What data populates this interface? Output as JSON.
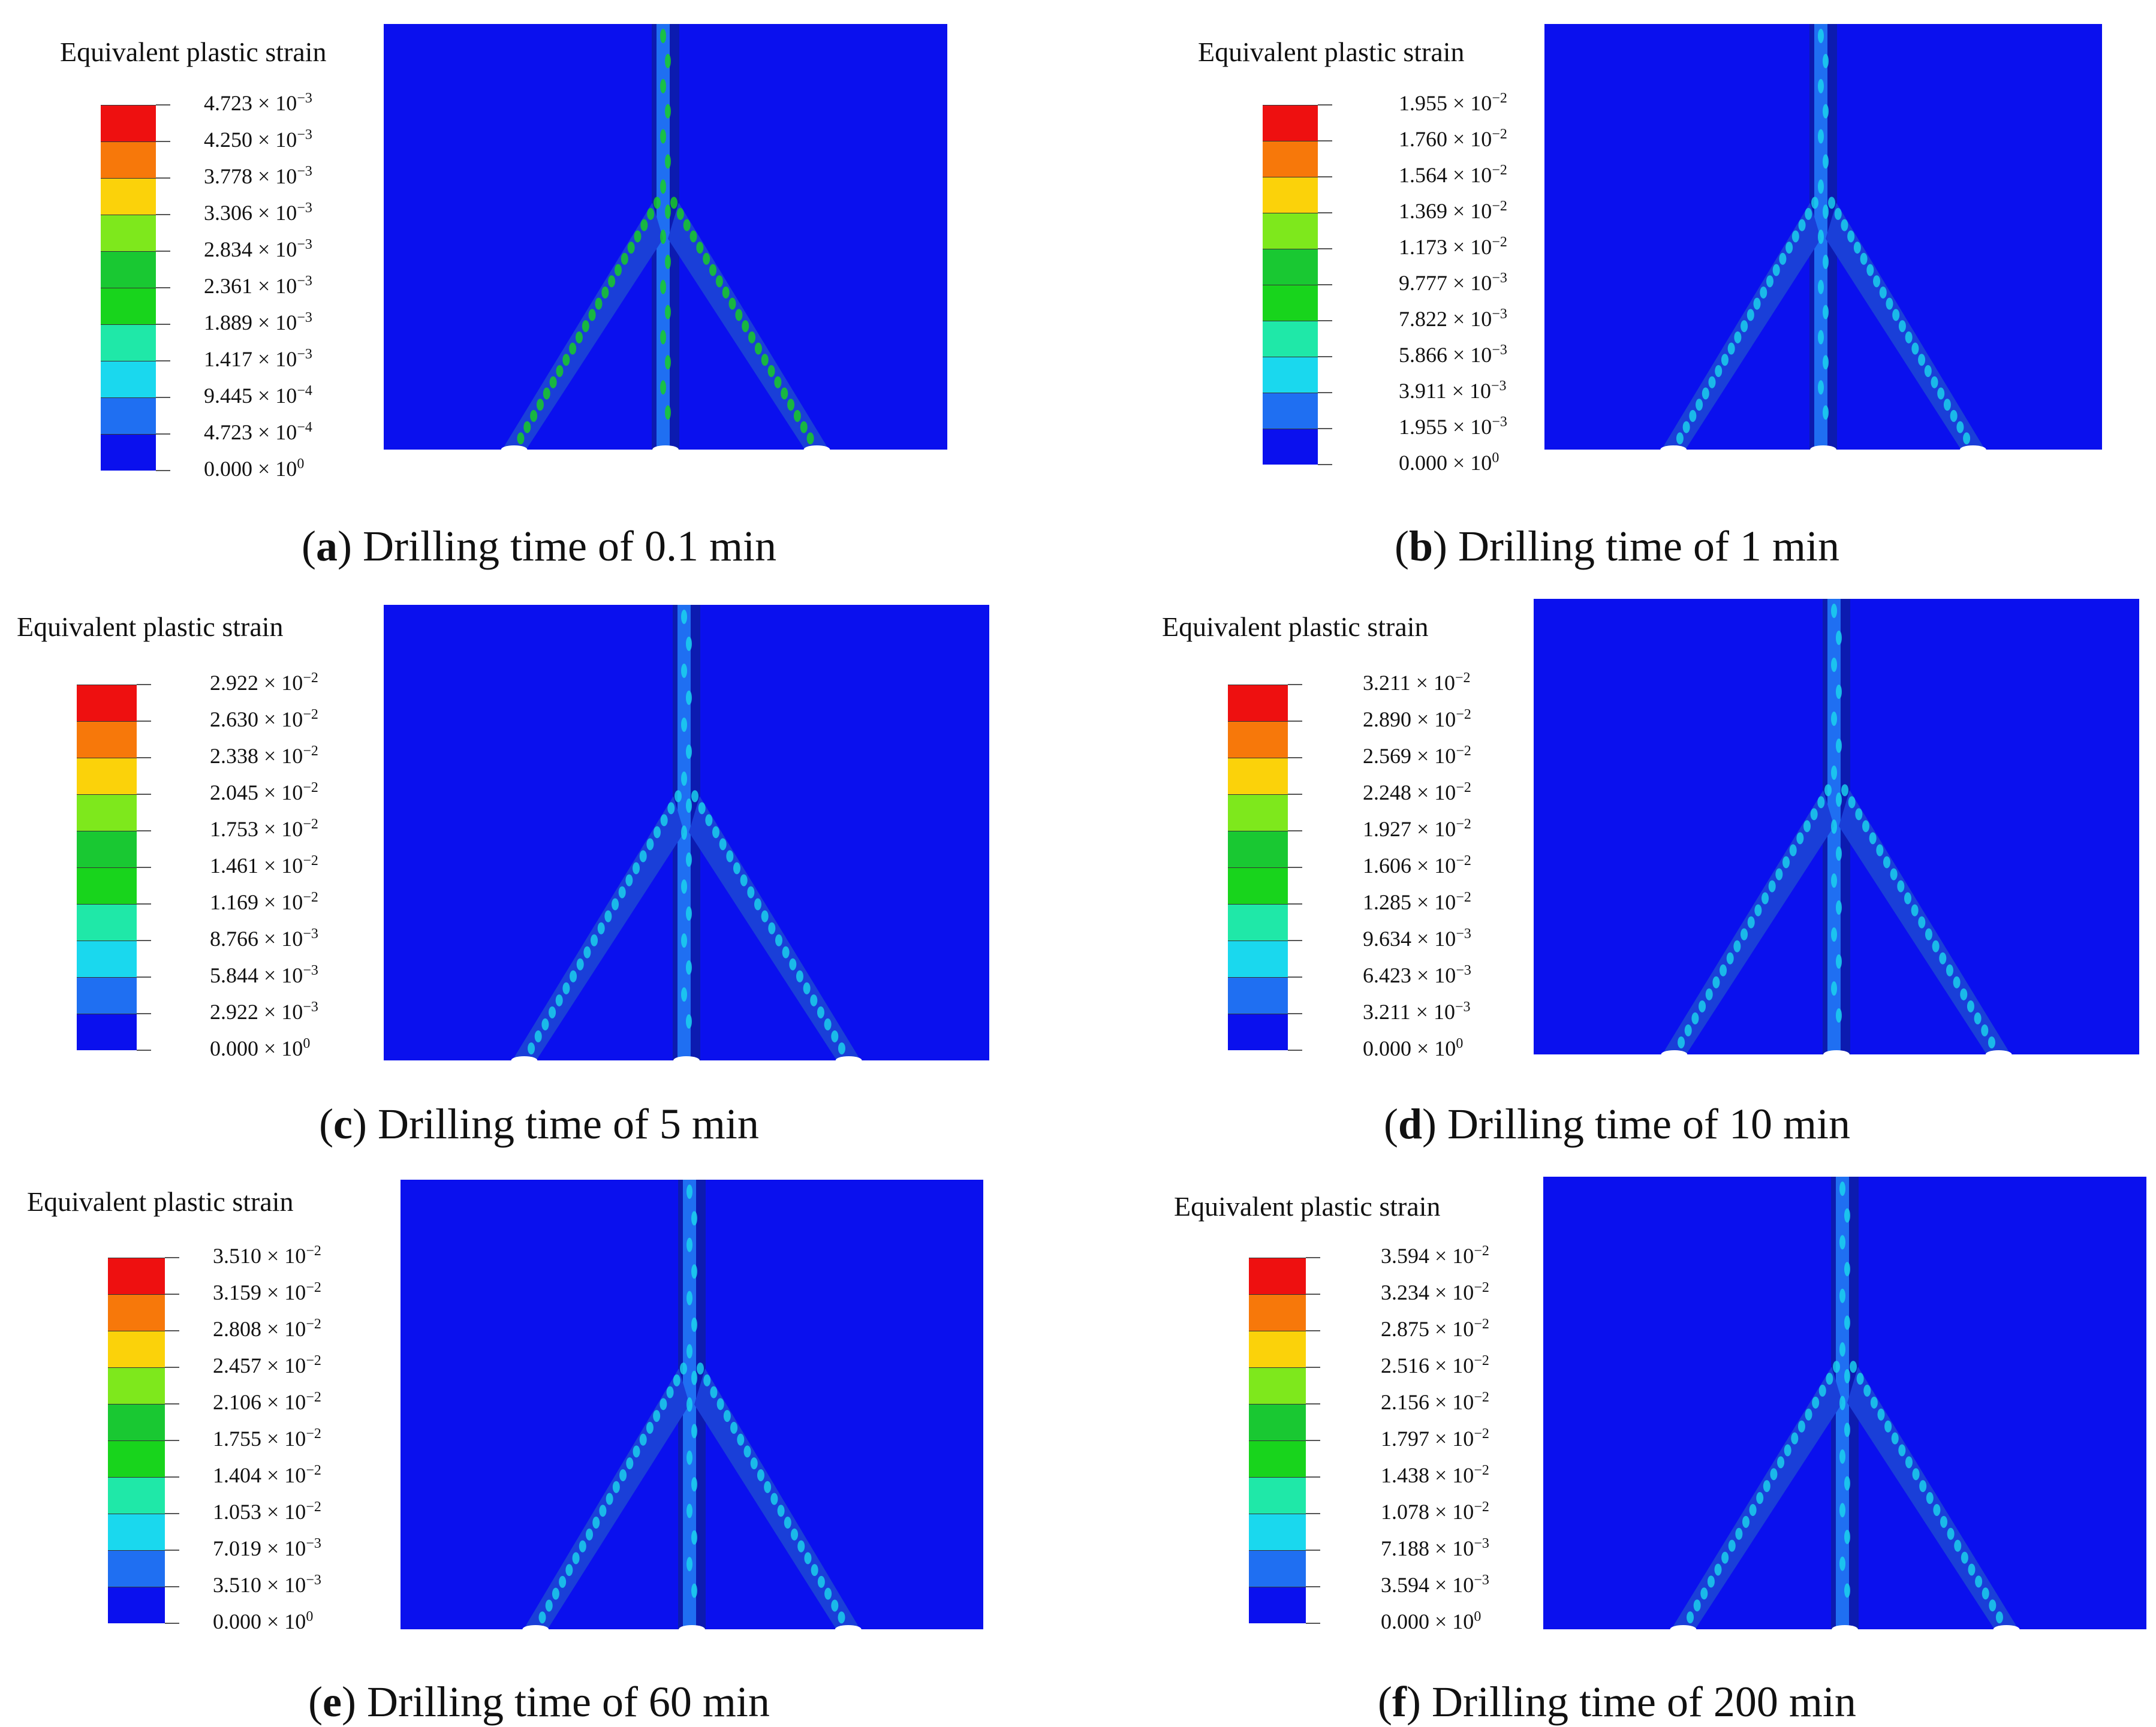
{
  "legend_title": "Equivalent plastic strain",
  "colors": [
    "#0a10ee",
    "#1f6ff2",
    "#1ad8ee",
    "#1fe8a8",
    "#18d41c",
    "#19c832",
    "#7ee81c",
    "#fbd20a",
    "#f7780a",
    "#ee1010"
  ],
  "colors_top_to_bottom": [
    "#ee1010",
    "#f7780a",
    "#fbd20a",
    "#7ee81c",
    "#19c832",
    "#18d41c",
    "#1fe8a8",
    "#1ad8ee",
    "#1f6ff2",
    "#0a10ee"
  ],
  "panels": [
    {
      "id": "a",
      "caption_letter": "a",
      "caption_text": ") Drilling time of 0.1 min",
      "legend": [
        {
          "mantissa": "4.723",
          "exp": "−3"
        },
        {
          "mantissa": "4.250",
          "exp": "−3"
        },
        {
          "mantissa": "3.778",
          "exp": "−3"
        },
        {
          "mantissa": "3.306",
          "exp": "−3"
        },
        {
          "mantissa": "2.834",
          "exp": "−3"
        },
        {
          "mantissa": "2.361",
          "exp": "−3"
        },
        {
          "mantissa": "1.889",
          "exp": "−3"
        },
        {
          "mantissa": "1.417",
          "exp": "−3"
        },
        {
          "mantissa": "9.445",
          "exp": "−4"
        },
        {
          "mantissa": "4.723",
          "exp": "−4"
        },
        {
          "mantissa": "0.000",
          "exp": "0"
        }
      ]
    },
    {
      "id": "b",
      "caption_letter": "b",
      "caption_text": ") Drilling time of 1 min",
      "legend": [
        {
          "mantissa": "1.955",
          "exp": "−2"
        },
        {
          "mantissa": "1.760",
          "exp": "−2"
        },
        {
          "mantissa": "1.564",
          "exp": "−2"
        },
        {
          "mantissa": "1.369",
          "exp": "−2"
        },
        {
          "mantissa": "1.173",
          "exp": "−2"
        },
        {
          "mantissa": "9.777",
          "exp": "−3"
        },
        {
          "mantissa": "7.822",
          "exp": "−3"
        },
        {
          "mantissa": "5.866",
          "exp": "−3"
        },
        {
          "mantissa": "3.911",
          "exp": "−3"
        },
        {
          "mantissa": "1.955",
          "exp": "−3"
        },
        {
          "mantissa": "0.000",
          "exp": "0"
        }
      ]
    },
    {
      "id": "c",
      "caption_letter": "c",
      "caption_text": ") Drilling time of 5 min",
      "legend": [
        {
          "mantissa": "2.922",
          "exp": "−2"
        },
        {
          "mantissa": "2.630",
          "exp": "−2"
        },
        {
          "mantissa": "2.338",
          "exp": "−2"
        },
        {
          "mantissa": "2.045",
          "exp": "−2"
        },
        {
          "mantissa": "1.753",
          "exp": "−2"
        },
        {
          "mantissa": "1.461",
          "exp": "−2"
        },
        {
          "mantissa": "1.169",
          "exp": "−2"
        },
        {
          "mantissa": "8.766",
          "exp": "−3"
        },
        {
          "mantissa": "5.844",
          "exp": "−3"
        },
        {
          "mantissa": "2.922",
          "exp": "−3"
        },
        {
          "mantissa": "0.000",
          "exp": "0"
        }
      ]
    },
    {
      "id": "d",
      "caption_letter": "d",
      "caption_text": ") Drilling time of 10 min",
      "legend": [
        {
          "mantissa": "3.211",
          "exp": "−2"
        },
        {
          "mantissa": "2.890",
          "exp": "−2"
        },
        {
          "mantissa": "2.569",
          "exp": "−2"
        },
        {
          "mantissa": "2.248",
          "exp": "−2"
        },
        {
          "mantissa": "1.927",
          "exp": "−2"
        },
        {
          "mantissa": "1.606",
          "exp": "−2"
        },
        {
          "mantissa": "1.285",
          "exp": "−2"
        },
        {
          "mantissa": "9.634",
          "exp": "−3"
        },
        {
          "mantissa": "6.423",
          "exp": "−3"
        },
        {
          "mantissa": "3.211",
          "exp": "−3"
        },
        {
          "mantissa": "0.000",
          "exp": "0"
        }
      ]
    },
    {
      "id": "e",
      "caption_letter": "e",
      "caption_text": ") Drilling time of 60 min",
      "legend": [
        {
          "mantissa": "3.510",
          "exp": "−2"
        },
        {
          "mantissa": "3.159",
          "exp": "−2"
        },
        {
          "mantissa": "2.808",
          "exp": "−2"
        },
        {
          "mantissa": "2.457",
          "exp": "−2"
        },
        {
          "mantissa": "2.106",
          "exp": "−2"
        },
        {
          "mantissa": "1.755",
          "exp": "−2"
        },
        {
          "mantissa": "1.404",
          "exp": "−2"
        },
        {
          "mantissa": "1.053",
          "exp": "−2"
        },
        {
          "mantissa": "7.019",
          "exp": "−3"
        },
        {
          "mantissa": "3.510",
          "exp": "−3"
        },
        {
          "mantissa": "0.000",
          "exp": "0"
        }
      ]
    },
    {
      "id": "f",
      "caption_letter": "f",
      "caption_text": ") Drilling time of 200 min",
      "legend": [
        {
          "mantissa": "3.594",
          "exp": "−2"
        },
        {
          "mantissa": "3.234",
          "exp": "−2"
        },
        {
          "mantissa": "2.875",
          "exp": "−2"
        },
        {
          "mantissa": "2.516",
          "exp": "−2"
        },
        {
          "mantissa": "2.156",
          "exp": "−2"
        },
        {
          "mantissa": "1.797",
          "exp": "−2"
        },
        {
          "mantissa": "1.438",
          "exp": "−2"
        },
        {
          "mantissa": "1.078",
          "exp": "−2"
        },
        {
          "mantissa": "7.188",
          "exp": "−3"
        },
        {
          "mantissa": "3.594",
          "exp": "−3"
        },
        {
          "mantissa": "0.000",
          "exp": "0"
        }
      ]
    }
  ]
}
